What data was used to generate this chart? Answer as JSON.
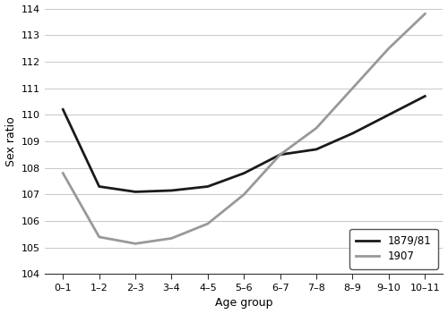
{
  "age_groups": [
    "0–1",
    "1–2",
    "2–3",
    "3–4",
    "4–5",
    "5–6",
    "6–7",
    "7–8",
    "8–9",
    "9–10",
    "10–11"
  ],
  "x_positions": [
    0,
    1,
    2,
    3,
    4,
    5,
    6,
    7,
    8,
    9,
    10
  ],
  "series_1879": [
    110.2,
    107.3,
    107.1,
    107.15,
    107.3,
    107.8,
    108.5,
    108.7,
    109.3,
    110.0,
    110.7
  ],
  "series_1907": [
    107.8,
    105.4,
    105.15,
    105.35,
    105.9,
    107.0,
    108.5,
    109.5,
    111.0,
    112.5,
    113.8
  ],
  "color_1879": "#1a1a1a",
  "color_1907": "#999999",
  "linewidth": 2.0,
  "ylabel": "Sex ratio",
  "xlabel": "Age group",
  "ylim": [
    104,
    114
  ],
  "yticks": [
    104,
    105,
    106,
    107,
    108,
    109,
    110,
    111,
    112,
    113,
    114
  ],
  "legend_labels": [
    "1879/81",
    "1907"
  ],
  "background_color": "#ffffff",
  "grid_color": "#c8c8c8"
}
